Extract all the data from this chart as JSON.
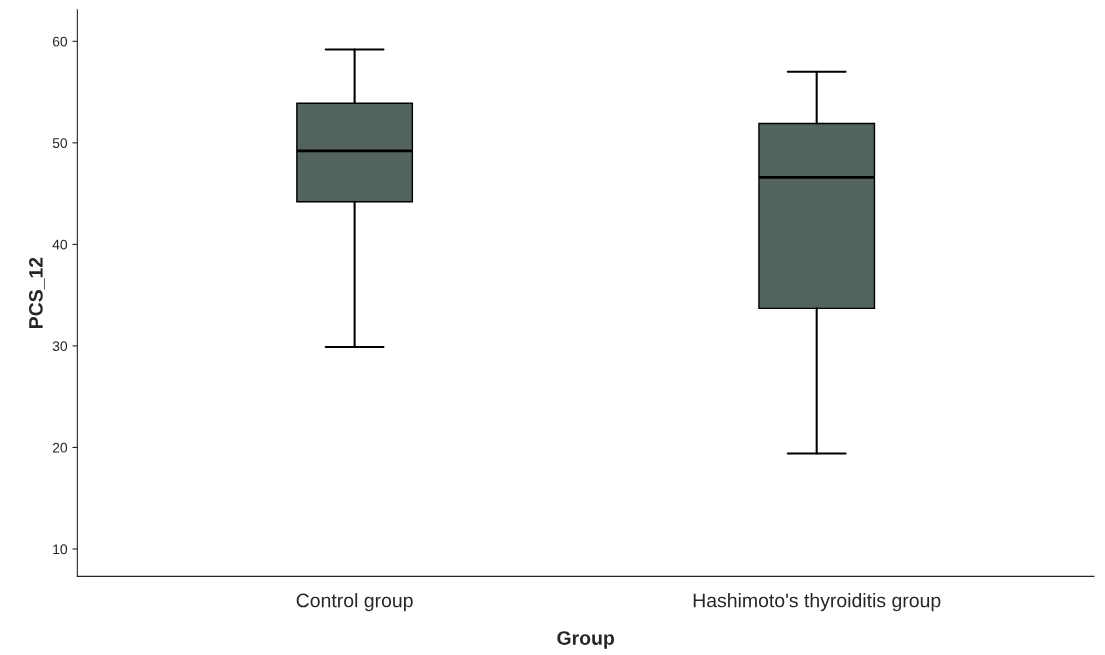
{
  "chart_data": {
    "type": "box",
    "xlabel": "Group",
    "ylabel": "PCS_12",
    "categories": [
      "Control group",
      "Hashimoto's thyroiditis group"
    ],
    "color": "#53635d",
    "ylim": [
      7.3,
      63.1
    ],
    "yticks": [
      10,
      20,
      30,
      40,
      50,
      60
    ],
    "grid": false,
    "boxes": [
      {
        "low": 29.9,
        "q1": 44.2,
        "median": 49.2,
        "q3": 53.9,
        "high": 59.2
      },
      {
        "low": 19.4,
        "q1": 33.7,
        "median": 46.6,
        "q3": 51.9,
        "high": 57.0
      }
    ]
  }
}
